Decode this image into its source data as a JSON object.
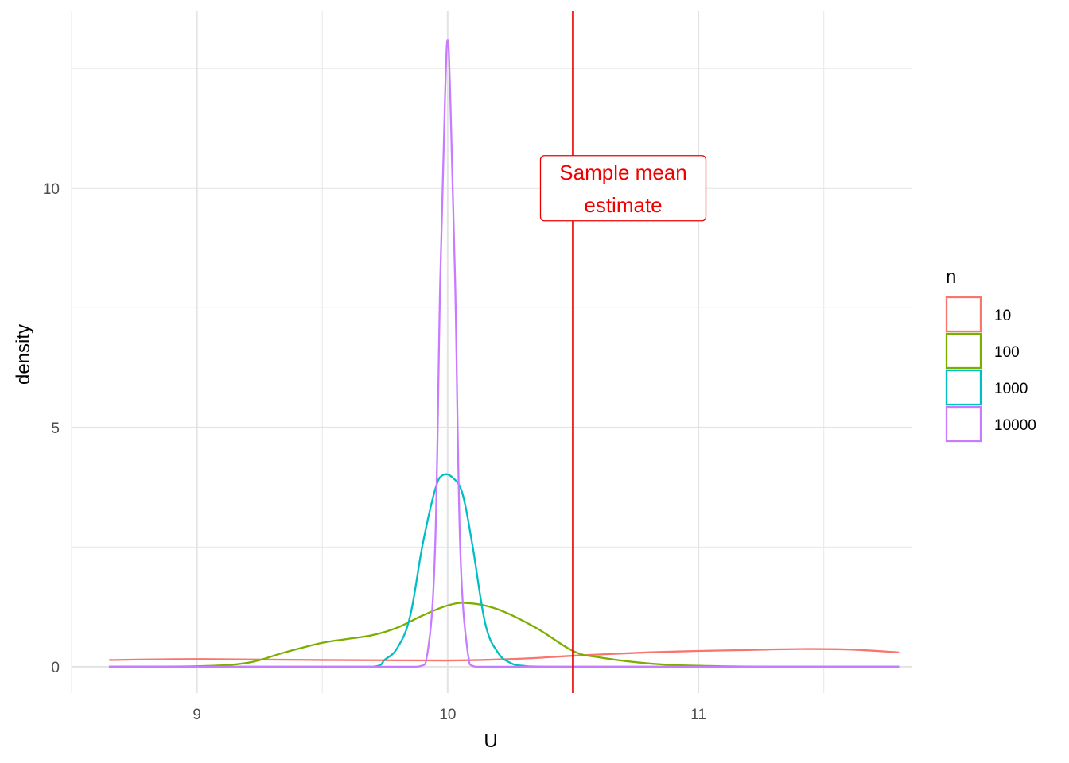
{
  "chart_data": {
    "type": "line",
    "xlabel": "U",
    "ylabel": "density",
    "xlim": [
      8.5,
      11.85
    ],
    "ylim": [
      -0.55,
      13.7
    ],
    "x_ticks": [
      9,
      10,
      11
    ],
    "y_ticks": [
      0,
      5,
      10
    ],
    "grid": true,
    "legend": {
      "title": "n",
      "placement": "right",
      "entries": [
        "10",
        "100",
        "1000",
        "10000"
      ]
    },
    "series": [
      {
        "name": "10",
        "color": "#F8766D",
        "x": [
          8.65,
          9.0,
          9.5,
          10.0,
          10.3,
          10.5,
          10.8,
          11.0,
          11.2,
          11.4,
          11.6,
          11.8
        ],
        "y": [
          0.14,
          0.16,
          0.14,
          0.13,
          0.17,
          0.23,
          0.3,
          0.33,
          0.35,
          0.37,
          0.36,
          0.3
        ]
      },
      {
        "name": "100",
        "color": "#7CAE00",
        "x": [
          8.65,
          9.0,
          9.2,
          9.35,
          9.5,
          9.6,
          9.7,
          9.8,
          9.9,
          10.0,
          10.08,
          10.2,
          10.35,
          10.5,
          10.6,
          10.8,
          11.0,
          11.3,
          11.8
        ],
        "y": [
          0.0,
          0.01,
          0.08,
          0.3,
          0.5,
          0.58,
          0.66,
          0.82,
          1.07,
          1.28,
          1.33,
          1.2,
          0.82,
          0.33,
          0.2,
          0.07,
          0.02,
          0.0,
          0.0
        ]
      },
      {
        "name": "1000",
        "color": "#00BFC4",
        "x": [
          8.65,
          9.7,
          9.75,
          9.8,
          9.85,
          9.9,
          9.95,
          9.98,
          10.02,
          10.06,
          10.1,
          10.15,
          10.2,
          10.25,
          10.3,
          10.4,
          11.8
        ],
        "y": [
          0.0,
          0.0,
          0.15,
          0.4,
          1.05,
          2.55,
          3.7,
          4.0,
          3.95,
          3.6,
          2.5,
          0.9,
          0.3,
          0.08,
          0.02,
          0.0,
          0.0
        ]
      },
      {
        "name": "10000",
        "color": "#C77CFF",
        "x": [
          8.65,
          9.88,
          9.92,
          9.95,
          9.97,
          9.99,
          10.0,
          10.01,
          10.03,
          10.05,
          10.08,
          10.11,
          11.8
        ],
        "y": [
          0.0,
          0.0,
          0.3,
          2.5,
          8.0,
          12.0,
          13.1,
          12.0,
          8.0,
          2.5,
          0.3,
          0.0,
          0.0
        ]
      }
    ],
    "vline": {
      "x": 10.5,
      "color": "#EE0000"
    },
    "annotation": {
      "lines": [
        "Sample mean",
        "estimate"
      ],
      "x": 10.7,
      "y": 10.0,
      "color": "#EE0000"
    }
  }
}
